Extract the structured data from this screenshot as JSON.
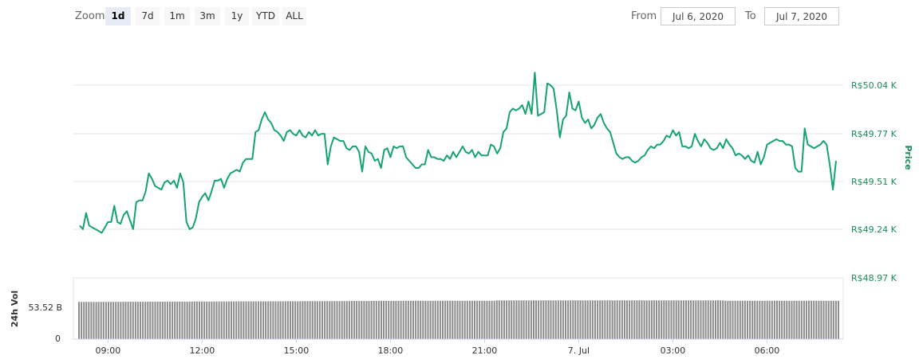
{
  "toolbar": {
    "zoom_label": "Zoom",
    "zoom_buttons": [
      "1d",
      "7d",
      "1m",
      "3m",
      "1y",
      "YTD",
      "ALL"
    ],
    "selected": "1d",
    "from_label": "From",
    "from_value": "Jul 6, 2020",
    "to_label": "To",
    "to_value": "Jul 7, 2020"
  },
  "colors": {
    "price_line": "#16a36f",
    "price_axis_text": "#1b8a5a",
    "volume_bar": "#8c8c8c",
    "gridline": "#e6e6e6"
  },
  "chart_data": {
    "type": "line",
    "x_ticks": [
      "09:00",
      "12:00",
      "15:00",
      "18:00",
      "21:00",
      "7. Jul",
      "03:00",
      "06:00"
    ],
    "x_tick_hours": [
      9,
      12,
      15,
      18,
      21,
      24,
      27,
      30
    ],
    "x_range_hours": [
      8.1,
      32.2
    ],
    "price_axis": {
      "title": "Price",
      "ticks": [
        "R$50.04 K",
        "R$49.77 K",
        "R$49.51 K",
        "R$49.24 K",
        "R$48.97 K"
      ],
      "tick_values": [
        50.04,
        49.77,
        49.51,
        49.24,
        48.97
      ],
      "range": [
        48.97,
        50.04
      ]
    },
    "volume_axis": {
      "title": "24h Vol",
      "ticks": [
        "53.52 B",
        "0"
      ],
      "tick_values": [
        53.52,
        0
      ],
      "range": [
        0,
        85
      ]
    },
    "grid": true,
    "series": [
      {
        "values": [
          [
            8.1,
            49.26
          ],
          [
            8.2,
            49.24
          ],
          [
            8.3,
            49.33
          ],
          [
            8.4,
            49.26
          ],
          [
            8.5,
            49.25
          ],
          [
            8.6,
            49.24
          ],
          [
            8.7,
            49.23
          ],
          [
            8.8,
            49.22
          ],
          [
            8.9,
            49.25
          ],
          [
            9.0,
            49.28
          ],
          [
            9.1,
            49.28
          ],
          [
            9.2,
            49.37
          ],
          [
            9.3,
            49.28
          ],
          [
            9.4,
            49.27
          ],
          [
            9.5,
            49.32
          ],
          [
            9.6,
            49.34
          ],
          [
            9.7,
            49.29
          ],
          [
            9.8,
            49.24
          ],
          [
            9.9,
            49.39
          ],
          [
            10.0,
            49.4
          ],
          [
            10.1,
            49.4
          ],
          [
            10.2,
            49.45
          ],
          [
            10.3,
            49.55
          ],
          [
            10.4,
            49.52
          ],
          [
            10.5,
            49.48
          ],
          [
            10.6,
            49.47
          ],
          [
            10.7,
            49.46
          ],
          [
            10.8,
            49.5
          ],
          [
            10.9,
            49.51
          ],
          [
            11.0,
            49.49
          ],
          [
            11.1,
            49.51
          ],
          [
            11.2,
            49.47
          ],
          [
            11.3,
            49.55
          ],
          [
            11.4,
            49.5
          ],
          [
            11.5,
            49.28
          ],
          [
            11.6,
            49.24
          ],
          [
            11.7,
            49.25
          ],
          [
            11.8,
            49.3
          ],
          [
            11.9,
            49.39
          ],
          [
            12.0,
            49.42
          ],
          [
            12.1,
            49.44
          ],
          [
            12.2,
            49.4
          ],
          [
            12.3,
            49.45
          ],
          [
            12.4,
            49.51
          ],
          [
            12.5,
            49.51
          ],
          [
            12.6,
            49.52
          ],
          [
            12.7,
            49.47
          ],
          [
            12.8,
            49.52
          ],
          [
            12.9,
            49.55
          ],
          [
            13.0,
            49.56
          ],
          [
            13.1,
            49.57
          ],
          [
            13.2,
            49.56
          ],
          [
            13.3,
            49.61
          ],
          [
            13.4,
            49.63
          ],
          [
            13.5,
            49.63
          ],
          [
            13.6,
            49.63
          ],
          [
            13.7,
            49.78
          ],
          [
            13.8,
            49.79
          ],
          [
            13.9,
            49.85
          ],
          [
            14.0,
            49.89
          ],
          [
            14.1,
            49.85
          ],
          [
            14.2,
            49.83
          ],
          [
            14.3,
            49.79
          ],
          [
            14.4,
            49.78
          ],
          [
            14.5,
            49.76
          ],
          [
            14.6,
            49.73
          ],
          [
            14.7,
            49.78
          ],
          [
            14.8,
            49.79
          ],
          [
            14.9,
            49.77
          ],
          [
            15.0,
            49.76
          ],
          [
            15.1,
            49.79
          ],
          [
            15.2,
            49.76
          ],
          [
            15.3,
            49.75
          ],
          [
            15.4,
            49.78
          ],
          [
            15.5,
            49.76
          ],
          [
            15.6,
            49.79
          ],
          [
            15.7,
            49.76
          ],
          [
            15.8,
            49.77
          ],
          [
            15.9,
            49.77
          ],
          [
            16.0,
            49.6
          ],
          [
            16.1,
            49.7
          ],
          [
            16.2,
            49.75
          ],
          [
            16.3,
            49.74
          ],
          [
            16.4,
            49.73
          ],
          [
            16.5,
            49.73
          ],
          [
            16.6,
            49.69
          ],
          [
            16.7,
            49.68
          ],
          [
            16.8,
            49.7
          ],
          [
            16.9,
            49.7
          ],
          [
            17.0,
            49.67
          ],
          [
            17.1,
            49.56
          ],
          [
            17.2,
            49.7
          ],
          [
            17.3,
            49.67
          ],
          [
            17.4,
            49.66
          ],
          [
            17.5,
            49.62
          ],
          [
            17.6,
            49.63
          ],
          [
            17.7,
            49.58
          ],
          [
            17.8,
            49.68
          ],
          [
            17.9,
            49.69
          ],
          [
            18.0,
            49.64
          ],
          [
            18.1,
            49.7
          ],
          [
            18.2,
            49.69
          ],
          [
            18.3,
            49.7
          ],
          [
            18.4,
            49.7
          ],
          [
            18.5,
            49.64
          ],
          [
            18.6,
            49.62
          ],
          [
            18.7,
            49.6
          ],
          [
            18.8,
            49.58
          ],
          [
            18.9,
            49.58
          ],
          [
            19.0,
            49.6
          ],
          [
            19.1,
            49.6
          ],
          [
            19.2,
            49.68
          ],
          [
            19.3,
            49.64
          ],
          [
            19.4,
            49.64
          ],
          [
            19.5,
            49.63
          ],
          [
            19.6,
            49.63
          ],
          [
            19.7,
            49.62
          ],
          [
            19.8,
            49.65
          ],
          [
            19.9,
            49.63
          ],
          [
            20.0,
            49.67
          ],
          [
            20.1,
            49.64
          ],
          [
            20.2,
            49.67
          ],
          [
            20.3,
            49.7
          ],
          [
            20.4,
            49.67
          ],
          [
            20.5,
            49.66
          ],
          [
            20.6,
            49.68
          ],
          [
            20.7,
            49.64
          ],
          [
            20.8,
            49.67
          ],
          [
            20.9,
            49.65
          ],
          [
            21.0,
            49.65
          ],
          [
            21.1,
            49.65
          ],
          [
            21.2,
            49.71
          ],
          [
            21.3,
            49.7
          ],
          [
            21.4,
            49.66
          ],
          [
            21.5,
            49.69
          ],
          [
            21.6,
            49.78
          ],
          [
            21.7,
            49.8
          ],
          [
            21.8,
            49.89
          ],
          [
            21.9,
            49.91
          ],
          [
            22.0,
            49.9
          ],
          [
            22.1,
            49.91
          ],
          [
            22.2,
            49.93
          ],
          [
            22.3,
            49.88
          ],
          [
            22.4,
            49.95
          ],
          [
            22.5,
            49.88
          ],
          [
            22.6,
            50.11
          ],
          [
            22.7,
            49.87
          ],
          [
            22.8,
            49.88
          ],
          [
            22.9,
            49.89
          ],
          [
            23.0,
            50.05
          ],
          [
            23.1,
            50.04
          ],
          [
            23.2,
            50.02
          ],
          [
            23.3,
            49.9
          ],
          [
            23.4,
            49.75
          ],
          [
            23.5,
            49.85
          ],
          [
            23.6,
            49.87
          ],
          [
            23.7,
            50.0
          ],
          [
            23.8,
            49.91
          ],
          [
            23.9,
            49.9
          ],
          [
            24.0,
            49.95
          ],
          [
            24.1,
            49.86
          ],
          [
            24.2,
            49.83
          ],
          [
            24.3,
            49.85
          ],
          [
            24.4,
            49.8
          ],
          [
            24.5,
            49.82
          ],
          [
            24.6,
            49.86
          ],
          [
            24.7,
            49.88
          ],
          [
            24.8,
            49.83
          ],
          [
            24.9,
            49.8
          ],
          [
            25.0,
            49.78
          ],
          [
            25.1,
            49.72
          ],
          [
            25.2,
            49.66
          ],
          [
            25.3,
            49.64
          ],
          [
            25.4,
            49.63
          ],
          [
            25.5,
            49.64
          ],
          [
            25.6,
            49.64
          ],
          [
            25.7,
            49.62
          ],
          [
            25.8,
            49.61
          ],
          [
            25.9,
            49.62
          ],
          [
            26.0,
            49.64
          ],
          [
            26.1,
            49.65
          ],
          [
            26.2,
            49.68
          ],
          [
            26.3,
            49.7
          ],
          [
            26.4,
            49.69
          ],
          [
            26.5,
            49.71
          ],
          [
            26.6,
            49.71
          ],
          [
            26.7,
            49.73
          ],
          [
            26.8,
            49.76
          ],
          [
            26.9,
            49.75
          ],
          [
            27.0,
            49.79
          ],
          [
            27.1,
            49.76
          ],
          [
            27.2,
            49.78
          ],
          [
            27.3,
            49.7
          ],
          [
            27.4,
            49.7
          ],
          [
            27.5,
            49.69
          ],
          [
            27.6,
            49.7
          ],
          [
            27.7,
            49.77
          ],
          [
            27.8,
            49.73
          ],
          [
            27.9,
            49.7
          ],
          [
            28.0,
            49.74
          ],
          [
            28.1,
            49.72
          ],
          [
            28.2,
            49.69
          ],
          [
            28.3,
            49.68
          ],
          [
            28.4,
            49.69
          ],
          [
            28.5,
            49.72
          ],
          [
            28.6,
            49.69
          ],
          [
            28.7,
            49.74
          ],
          [
            28.8,
            49.71
          ],
          [
            28.9,
            49.69
          ],
          [
            29.0,
            49.65
          ],
          [
            29.1,
            49.66
          ],
          [
            29.2,
            49.65
          ],
          [
            29.3,
            49.63
          ],
          [
            29.4,
            49.65
          ],
          [
            29.5,
            49.62
          ],
          [
            29.6,
            49.61
          ],
          [
            29.7,
            49.67
          ],
          [
            29.8,
            49.6
          ],
          [
            29.9,
            49.64
          ],
          [
            30.0,
            49.71
          ],
          [
            30.1,
            49.72
          ],
          [
            30.2,
            49.73
          ],
          [
            30.3,
            49.74
          ],
          [
            30.4,
            49.73
          ],
          [
            30.5,
            49.73
          ],
          [
            30.6,
            49.71
          ],
          [
            30.7,
            49.71
          ],
          [
            30.8,
            49.7
          ],
          [
            30.9,
            49.58
          ],
          [
            31.0,
            49.56
          ],
          [
            31.1,
            49.56
          ],
          [
            31.2,
            49.8
          ],
          [
            31.3,
            49.71
          ],
          [
            31.4,
            49.7
          ],
          [
            31.5,
            49.69
          ],
          [
            31.6,
            49.7
          ],
          [
            31.7,
            49.71
          ],
          [
            31.8,
            49.73
          ],
          [
            31.9,
            49.71
          ],
          [
            32.0,
            49.6
          ],
          [
            32.1,
            49.46
          ],
          [
            32.2,
            49.62
          ]
        ]
      }
    ],
    "volume": {
      "values_first_last": [
        51.5,
        53.2
      ],
      "shape": "flat-ish bars slightly rising midday"
    }
  }
}
